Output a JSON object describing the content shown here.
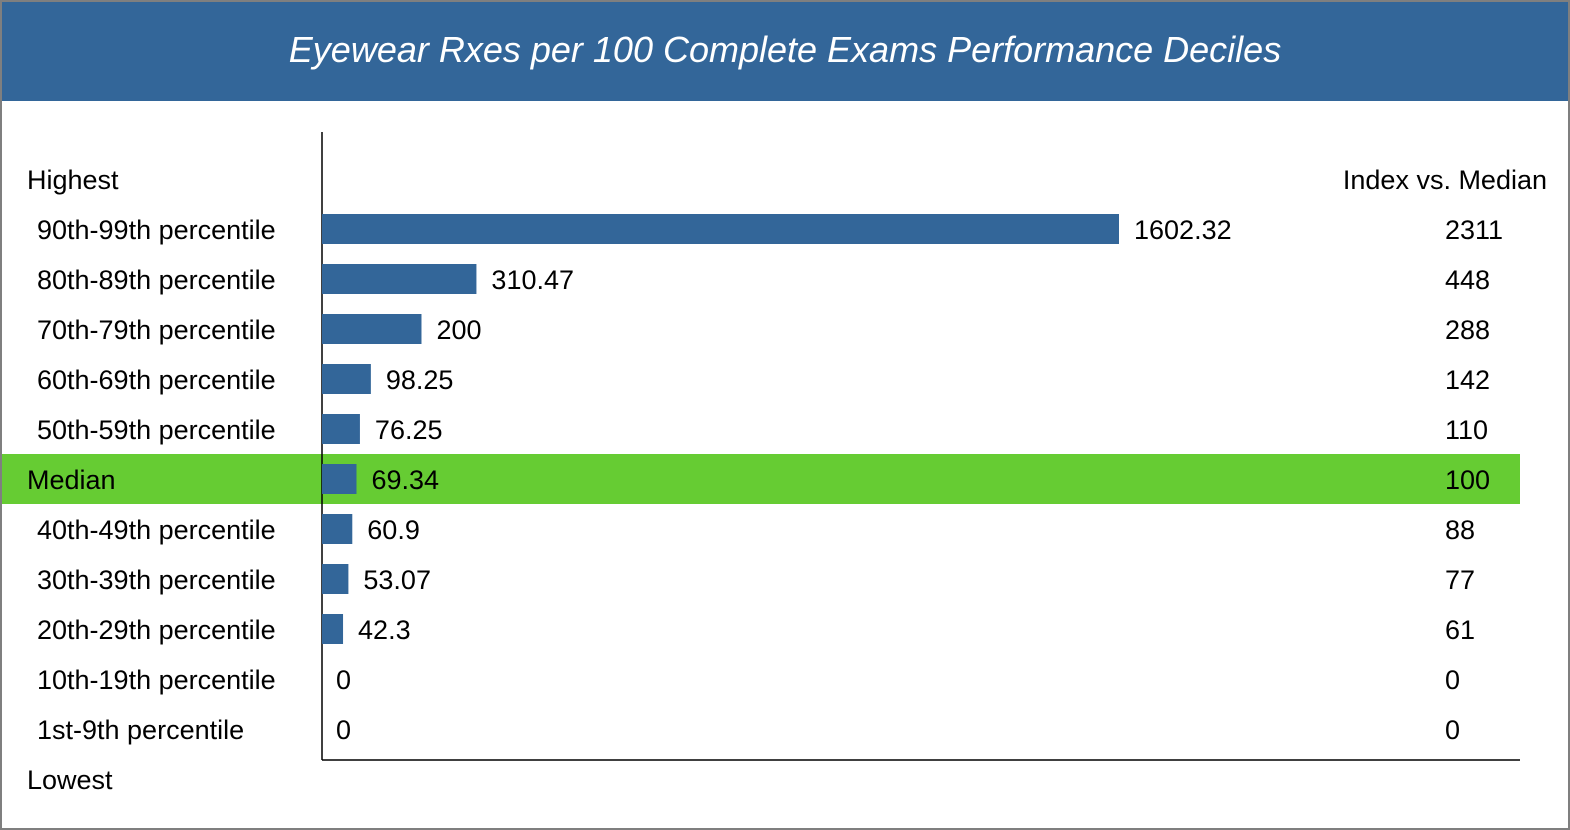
{
  "title": "Eyewear Rxes per 100 Complete Exams Performance Deciles",
  "chart_data": {
    "type": "bar",
    "orientation": "horizontal",
    "top_label": "Highest",
    "bottom_label": "Lowest",
    "index_header": "Index vs. Median",
    "categories": [
      "90th-99th percentile",
      "80th-89th percentile",
      "70th-79th percentile",
      "60th-69th percentile",
      "50th-59th percentile",
      "Median",
      "40th-49th percentile",
      "30th-39th percentile",
      "20th-29th percentile",
      "10th-19th percentile",
      "1st-9th percentile"
    ],
    "values": [
      1602.32,
      310.47,
      200,
      98.25,
      76.25,
      69.34,
      60.9,
      53.07,
      42.3,
      0,
      0
    ],
    "value_labels": [
      "1602.32",
      "310.47",
      "200",
      "98.25",
      "76.25",
      "69.34",
      "60.9",
      "53.07",
      "42.3",
      "0",
      "0"
    ],
    "index_values": [
      "2311",
      "448",
      "288",
      "142",
      "110",
      "100",
      "88",
      "77",
      "61",
      "0",
      "0"
    ],
    "highlight_category": "Median",
    "xlim": [
      0,
      2400
    ],
    "grid": false,
    "legend": "none",
    "colors": {
      "bar": "#336699",
      "highlight": "#66cc33",
      "header": "#336699"
    }
  }
}
